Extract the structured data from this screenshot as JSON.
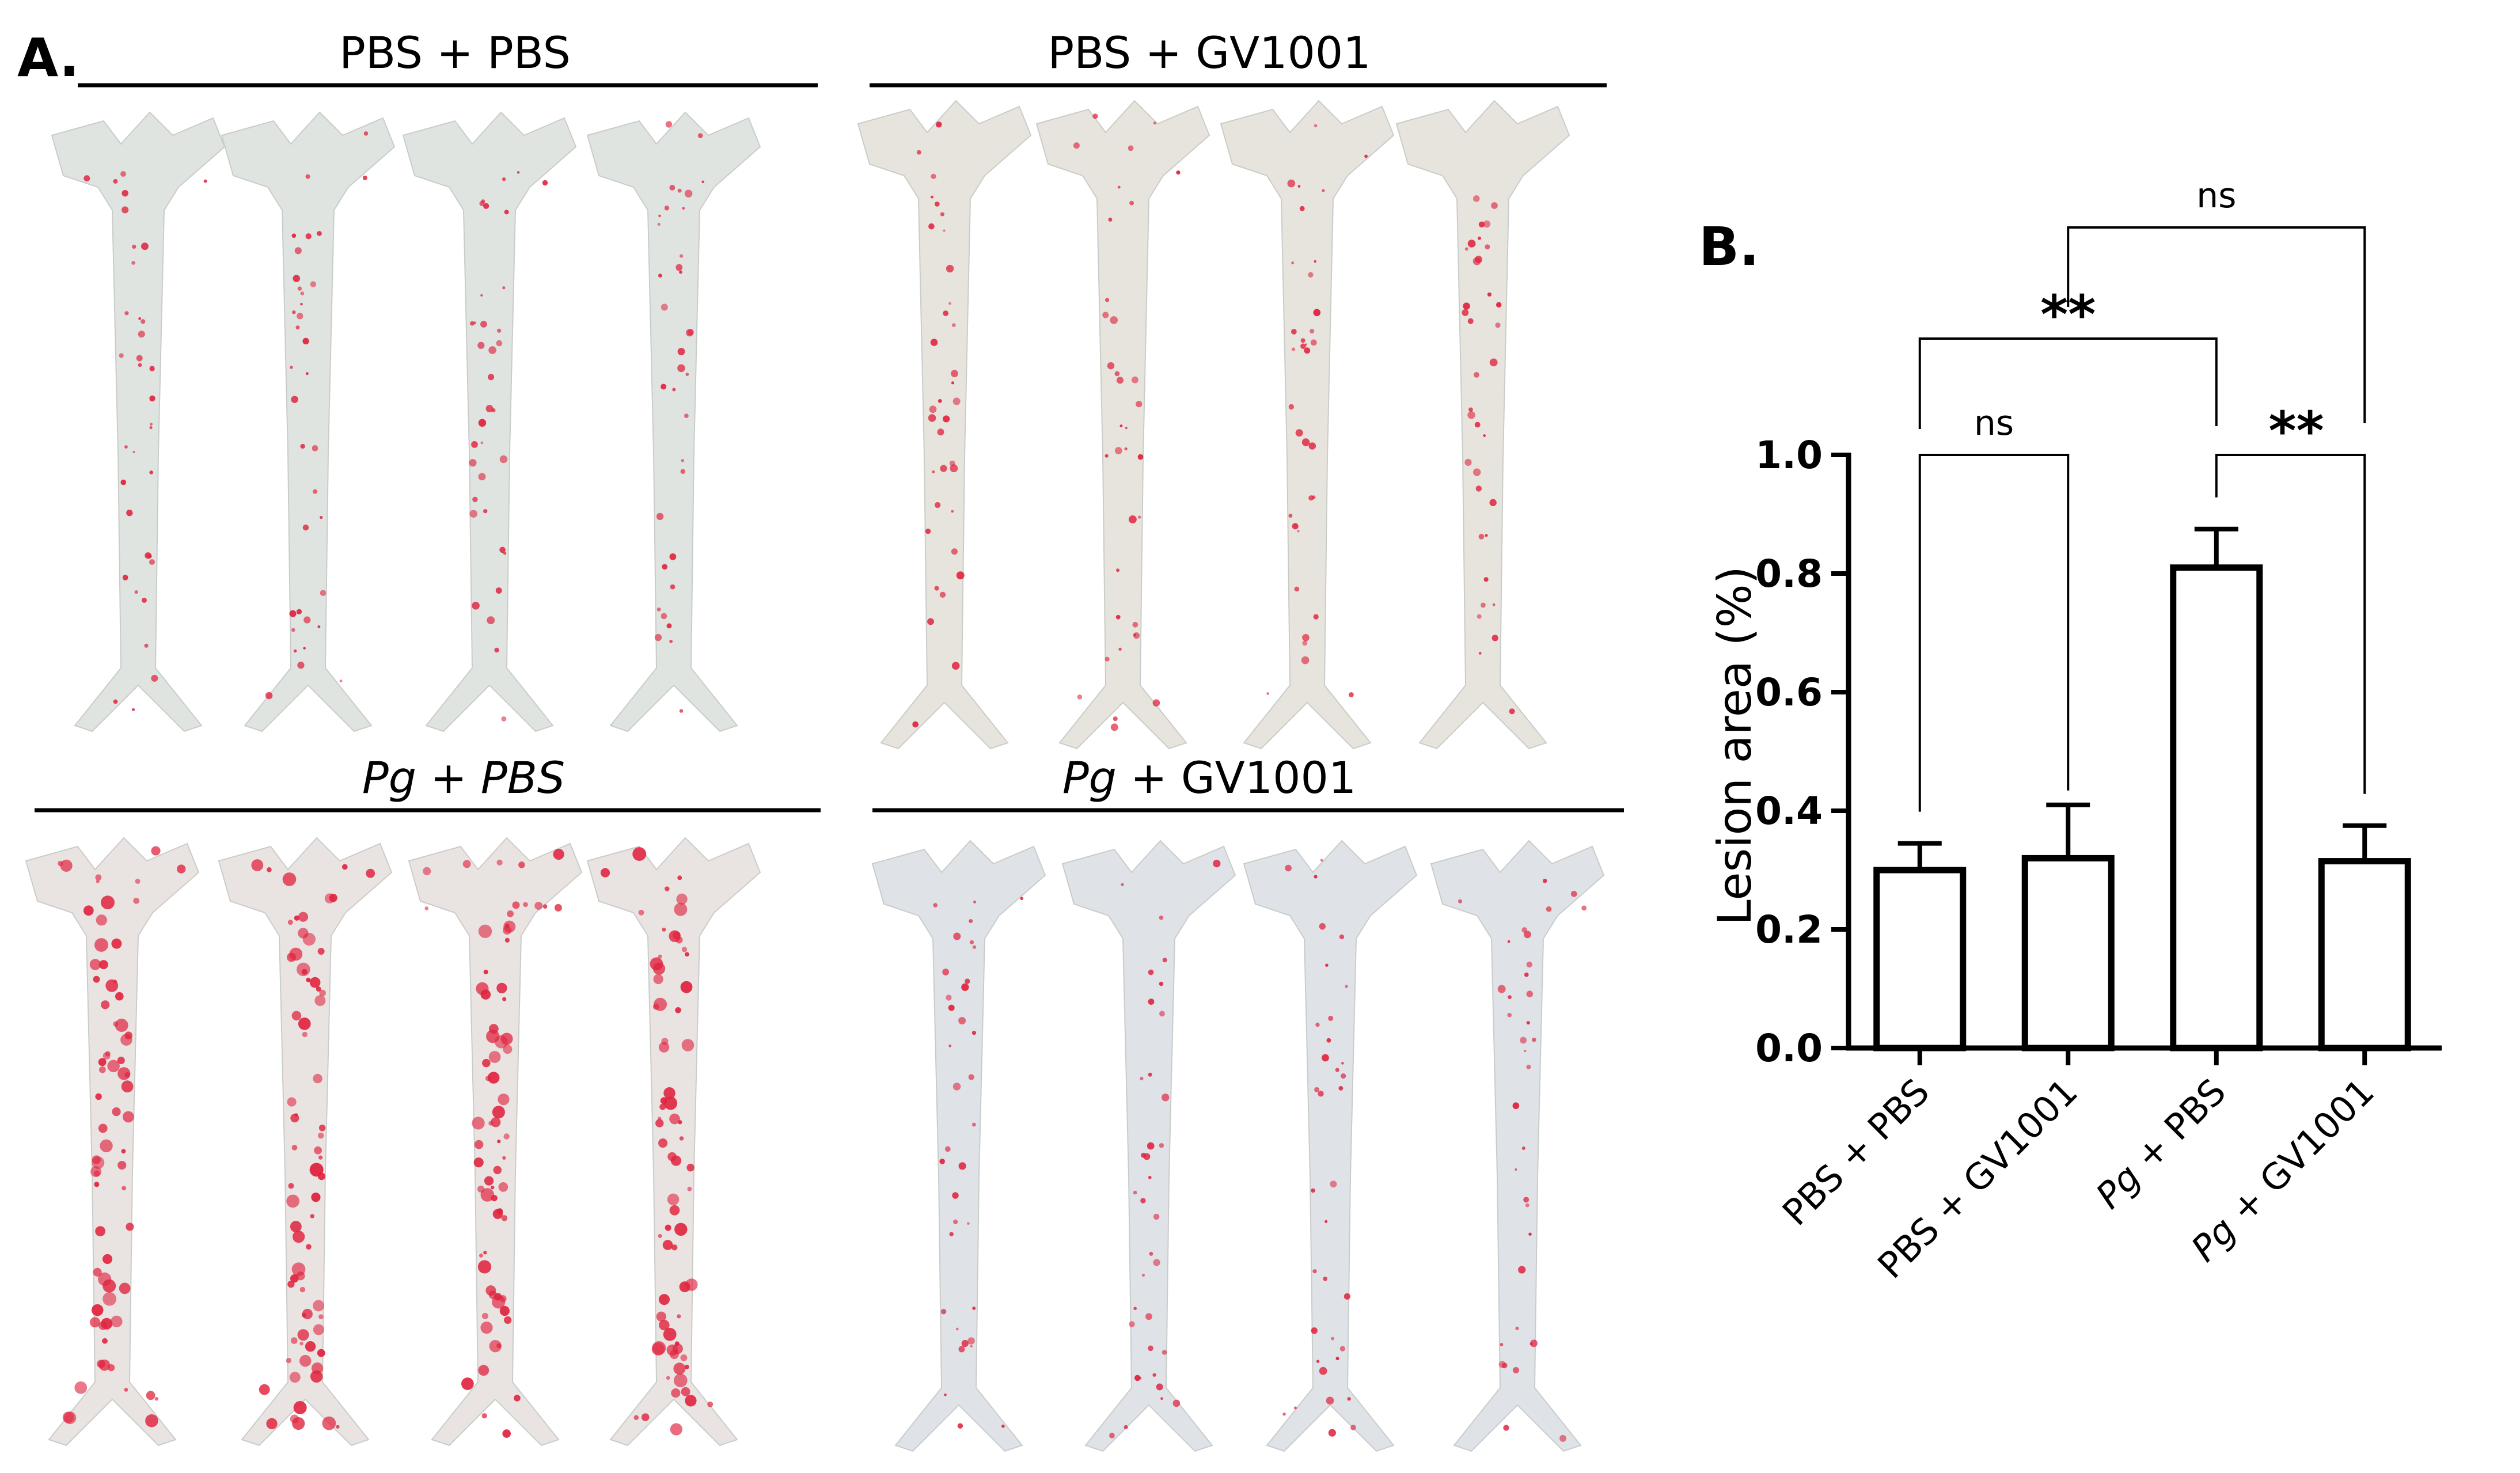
{
  "panel_a": {
    "letter": "A.",
    "groups": [
      {
        "title": "PBS + PBS",
        "title_parts": [
          {
            "text": "PBS + PBS",
            "italic": false
          }
        ],
        "spots": "light",
        "tint": "#dfe4e0"
      },
      {
        "title": "PBS + GV1001",
        "title_parts": [
          {
            "text": "PBS + GV1001",
            "italic": false
          }
        ],
        "spots": "light",
        "tint": "#e6e4dc"
      },
      {
        "title": "Pg + PBS",
        "title_parts": [
          {
            "text": "Pg + PBS",
            "italic": true
          }
        ],
        "spots": "heavy",
        "tint": "#e9e4e2"
      },
      {
        "title": "Pg + GV1001",
        "title_parts": [
          {
            "text": "Pg",
            "italic": true
          },
          {
            "text": " + GV1001",
            "italic": false
          }
        ],
        "spots": "light",
        "tint": "#dfe2e6"
      }
    ]
  },
  "panel_b": {
    "letter": "B."
  },
  "chart_data": {
    "type": "bar",
    "categories": [
      "PBS + PBS",
      "PBS + GV1001",
      "Pg + PBS",
      "Pg + GV1001"
    ],
    "category_parts": [
      [
        {
          "text": "PBS + PBS",
          "italic": false
        }
      ],
      [
        {
          "text": "PBS + GV1001",
          "italic": false
        }
      ],
      [
        {
          "text": "Pg",
          "italic": true
        },
        {
          "text": " + PBS",
          "italic": false
        }
      ],
      [
        {
          "text": "Pg",
          "italic": true
        },
        {
          "text": " + GV1001",
          "italic": false
        }
      ]
    ],
    "values": [
      0.3,
      0.32,
      0.81,
      0.315
    ],
    "error_upper": [
      0.345,
      0.41,
      0.875,
      0.375
    ],
    "ylabel": "Lesion area (%)",
    "xlabel": "",
    "ylim": [
      0.0,
      1.0
    ],
    "yticks": [
      0.0,
      0.2,
      0.4,
      0.6,
      0.8,
      1.0
    ],
    "ytick_labels": [
      "0.0",
      "0.2",
      "0.4",
      "0.6",
      "0.8",
      "1.0"
    ],
    "grid": false,
    "significance": [
      {
        "from": "PBS + PBS",
        "to": "PBS + GV1001",
        "label": "ns"
      },
      {
        "from": "Pg + PBS",
        "to": "Pg + GV1001",
        "label": "**"
      },
      {
        "from": "PBS + PBS",
        "to": "Pg + PBS",
        "label": "**"
      },
      {
        "from": "PBS + GV1001",
        "to": "Pg + GV1001",
        "label": "ns"
      }
    ]
  }
}
